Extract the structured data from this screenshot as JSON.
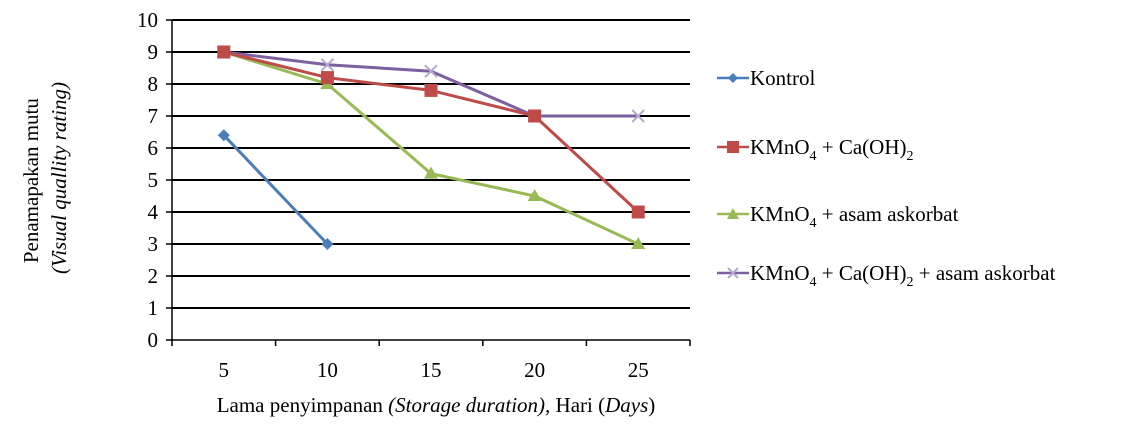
{
  "chart_data": {
    "type": "line",
    "title": "",
    "x": [
      5,
      10,
      15,
      20,
      25
    ],
    "xlabel": {
      "part1": "Lama penyimpanan ",
      "part2": "(Storage duration),",
      "part3": " Hari (",
      "part4": "Days",
      "part5": ")"
    },
    "ylabel": {
      "line1": "Penamapakan mutu",
      "line2": "(Visual quallity rating)"
    },
    "ylim": [
      0,
      10
    ],
    "yticks": [
      0,
      1,
      2,
      3,
      4,
      5,
      6,
      7,
      8,
      9,
      10
    ],
    "grid": true,
    "legend_position": "right",
    "series": [
      {
        "name": "Kontrol",
        "legend": {
          "t1": "Kontrol"
        },
        "color": "#4A7EBB",
        "marker": "diamond",
        "values": [
          6.4,
          3.0,
          null,
          null,
          null
        ]
      },
      {
        "name": "KMnO4 + Ca(OH)2",
        "legend": {
          "t1": "KMnO",
          "s1": "4",
          "t2": " + Ca(OH)",
          "s2": "2"
        },
        "color": "#BE4B48",
        "marker": "square",
        "values": [
          9.0,
          8.2,
          7.8,
          7.0,
          4.0
        ]
      },
      {
        "name": "KMnO4 + asam askorbat",
        "legend": {
          "t1": "KMnO",
          "s1": "4",
          "t2": " + asam askorbat"
        },
        "color": "#98B954",
        "marker": "triangle",
        "values": [
          9.0,
          8.0,
          5.2,
          4.5,
          3.0
        ]
      },
      {
        "name": "KMnO4 + Ca(OH)2 + asam askorbat",
        "legend": {
          "t1": "KMnO",
          "s1": "4",
          "t2": " + Ca(OH)",
          "s2": "2",
          "t3": " + asam askorbat"
        },
        "color": "#7D60A0",
        "marker": "x",
        "values": [
          9.0,
          8.6,
          8.4,
          7.0,
          7.0
        ]
      }
    ]
  }
}
